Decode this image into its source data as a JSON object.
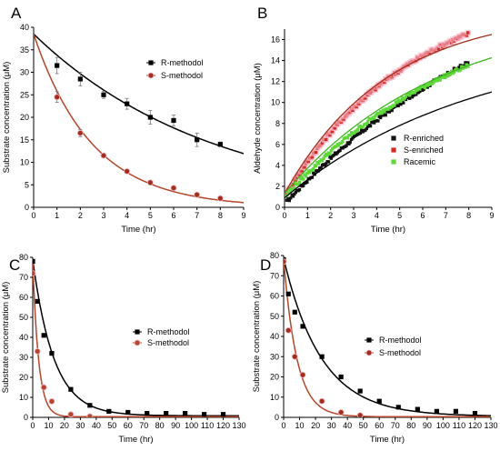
{
  "chart_data": [
    {
      "panel": "A",
      "type": "scatter",
      "xlabel": "Time (hr)",
      "ylabel": "Substrate concentration (μM)",
      "xlim": [
        0,
        9
      ],
      "ylim": [
        0,
        40
      ],
      "xticks": [
        0,
        1,
        2,
        3,
        4,
        5,
        6,
        7,
        8,
        9
      ],
      "yticks": [
        0,
        5,
        10,
        15,
        20,
        25,
        30,
        35,
        40
      ],
      "legend_position": "upper-right",
      "series": [
        {
          "name": "R-methodol",
          "marker": "square",
          "color": "#000000",
          "x": [
            1,
            2,
            3,
            4,
            5,
            6,
            7,
            8
          ],
          "y": [
            31.5,
            28.5,
            25,
            23,
            20,
            19.3,
            15,
            14
          ],
          "err": [
            1.8,
            1.5,
            0.8,
            1.2,
            1.5,
            1.2,
            1.5,
            0.5
          ],
          "fit": {
            "a": 38.5,
            "k": 0.13,
            "color": "#000000"
          }
        },
        {
          "name": "S-methodol",
          "marker": "circle",
          "color": "#a0301c",
          "x": [
            1,
            2,
            3,
            4,
            5,
            6,
            7,
            8
          ],
          "y": [
            24.5,
            16.5,
            11.5,
            8,
            5.5,
            4.3,
            2.8,
            2
          ],
          "err": [
            1.2,
            0.8,
            0.5,
            0.5,
            0.4,
            0.4,
            0.3,
            0.3
          ],
          "fit": {
            "a": 38.5,
            "k": 0.4,
            "color": "#b5462b"
          }
        }
      ]
    },
    {
      "panel": "B",
      "type": "scatter",
      "xlabel": "Time (hr)",
      "ylabel": "Aldehyde concentration (μM)",
      "xlim": [
        0,
        9
      ],
      "ylim": [
        0,
        17
      ],
      "xticks": [
        0,
        1,
        2,
        3,
        4,
        5,
        6,
        7,
        8,
        9
      ],
      "yticks": [
        0,
        2,
        4,
        6,
        8,
        10,
        12,
        14,
        16
      ],
      "legend_position": "lower-right",
      "series": [
        {
          "name": "R-enriched",
          "marker": "square",
          "color": "#111111",
          "x_range": [
            0.1,
            8
          ],
          "model": {
            "a": 26,
            "k": 0.092,
            "c": 0.3
          }
        },
        {
          "name": "S-enriched",
          "marker": "square",
          "color": "#d42a1f",
          "x_range": [
            0.1,
            8
          ],
          "model": {
            "a": 20.5,
            "k": 0.178,
            "c": 1.0
          }
        },
        {
          "name": "Racemic",
          "marker": "square",
          "color": "#5fd93a",
          "x_range": [
            0.1,
            8
          ],
          "model": {
            "a": 20,
            "k": 0.125,
            "c": 0.9
          }
        }
      ],
      "fits": [
        {
          "color": "#000000",
          "a": 15.3,
          "k": 0.12,
          "c": 0.9
        },
        {
          "color": "#a0301c",
          "a": 17.5,
          "k": 0.225,
          "c": 1.3
        },
        {
          "color": "#3fb321",
          "a": 17.5,
          "k": 0.15,
          "c": 1.3
        }
      ]
    },
    {
      "panel": "C",
      "type": "scatter",
      "xlabel": "Time (hr)",
      "ylabel": "Substrate concentration (μM)",
      "xlim": [
        0,
        130
      ],
      "ylim": [
        0,
        80
      ],
      "xticks": [
        0,
        10,
        20,
        30,
        40,
        50,
        60,
        70,
        80,
        90,
        100,
        110,
        120,
        130
      ],
      "yticks": [
        0,
        10,
        20,
        30,
        40,
        50,
        60,
        70,
        80
      ],
      "legend_position": "middle-right",
      "series": [
        {
          "name": "R-methodol",
          "marker": "square",
          "color": "#000000",
          "x": [
            0,
            3,
            7,
            12,
            24,
            36,
            48,
            60,
            72,
            84,
            96,
            108,
            120
          ],
          "y": [
            78,
            58,
            41,
            32,
            14,
            6,
            3,
            2.5,
            2,
            2,
            2,
            1.5,
            1.5
          ],
          "fit": {
            "a": 78,
            "k": 0.075,
            "c": 0.8,
            "color": "#000000"
          }
        },
        {
          "name": "S-methodol",
          "marker": "circle",
          "color": "#b5462b",
          "x": [
            0,
            3,
            7,
            12,
            24,
            36
          ],
          "y": [
            72,
            33,
            15,
            8,
            1.5,
            0.5
          ],
          "fit": {
            "a": 78,
            "k": 0.27,
            "c": 0.3,
            "color": "#b5462b"
          }
        }
      ]
    },
    {
      "panel": "D",
      "type": "scatter",
      "xlabel": "Time (hr)",
      "ylabel": "Substrate concentration (μM)",
      "xlim": [
        0,
        130
      ],
      "ylim": [
        0,
        80
      ],
      "xticks": [
        0,
        10,
        20,
        30,
        40,
        50,
        60,
        70,
        80,
        90,
        100,
        110,
        120,
        130
      ],
      "yticks": [
        0,
        10,
        20,
        30,
        40,
        50,
        60,
        70,
        80
      ],
      "legend_position": "middle-right",
      "series": [
        {
          "name": "R-methodol",
          "marker": "square",
          "color": "#000000",
          "x": [
            0,
            3,
            7,
            12,
            24,
            36,
            48,
            60,
            72,
            84,
            96,
            108,
            120
          ],
          "y": [
            78,
            61,
            52,
            45,
            30,
            20,
            13,
            8,
            5,
            4,
            3,
            3,
            2
          ],
          "fit": {
            "a": 78,
            "k": 0.042,
            "c": 0.5,
            "color": "#000000"
          }
        },
        {
          "name": "S-methodol",
          "marker": "circle",
          "color": "#a0301c",
          "x": [
            0,
            3,
            7,
            12,
            24,
            36,
            48
          ],
          "y": [
            77,
            43,
            30,
            21,
            8,
            2.5,
            1
          ],
          "fit": {
            "a": 78,
            "k": 0.12,
            "c": 0.3,
            "color": "#b5462b"
          }
        }
      ]
    }
  ]
}
